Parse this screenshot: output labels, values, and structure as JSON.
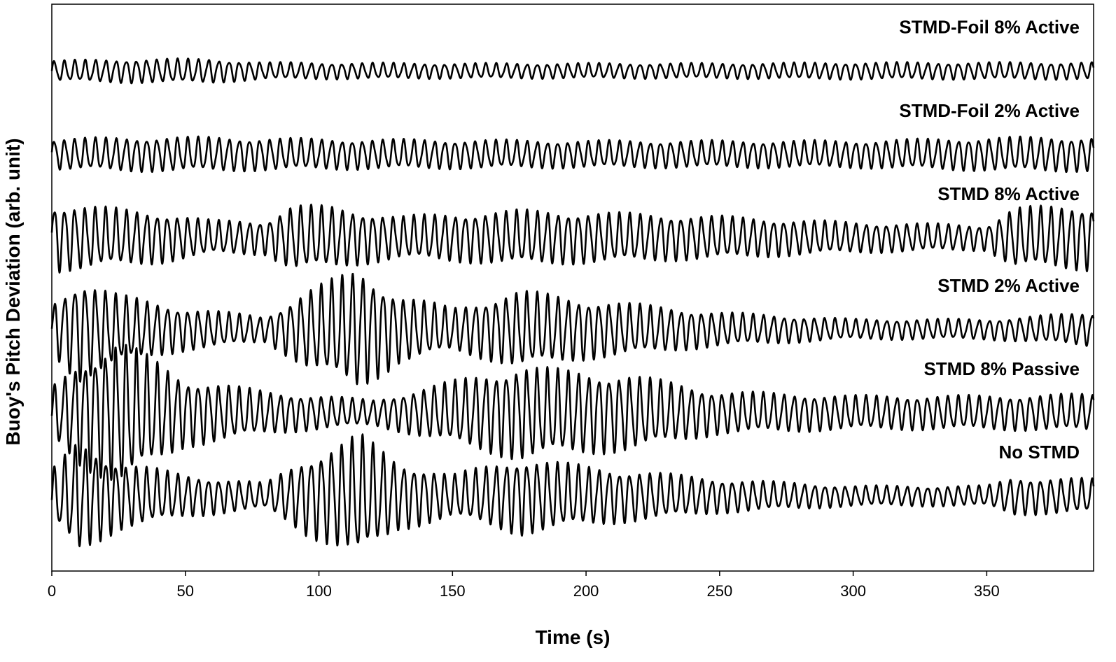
{
  "chart_data": {
    "type": "line",
    "xlabel": "Time (s)",
    "ylabel": "Buoy's Pitch Deviation (arb. unit)",
    "xlim": [
      0,
      390
    ],
    "x_ticks": [
      "0",
      "50",
      "100",
      "150",
      "200",
      "250",
      "300",
      "350"
    ],
    "y_ticks": "none",
    "grid": false,
    "legend": "labels above each trace (right-aligned)",
    "series": [
      {
        "name": "STMD-Foil 8% Active",
        "offset": 6.0,
        "freq": 0.26,
        "envelope": [
          [
            0,
            0.12
          ],
          [
            30,
            0.14
          ],
          [
            60,
            0.14
          ],
          [
            80,
            0.1
          ],
          [
            150,
            0.09
          ],
          [
            250,
            0.09
          ],
          [
            300,
            0.1
          ],
          [
            350,
            0.1
          ],
          [
            390,
            0.1
          ]
        ]
      },
      {
        "name": "STMD-Foil 2% Active",
        "offset": 5.0,
        "freq": 0.26,
        "envelope": [
          [
            0,
            0.18
          ],
          [
            30,
            0.2
          ],
          [
            60,
            0.2
          ],
          [
            100,
            0.18
          ],
          [
            200,
            0.16
          ],
          [
            300,
            0.16
          ],
          [
            360,
            0.2
          ],
          [
            390,
            0.2
          ]
        ]
      },
      {
        "name": "STMD 8% Active",
        "offset": 4.0,
        "freq": 0.26,
        "envelope": [
          [
            0,
            0.4
          ],
          [
            40,
            0.3
          ],
          [
            60,
            0.2
          ],
          [
            80,
            0.2
          ],
          [
            90,
            0.38
          ],
          [
            105,
            0.36
          ],
          [
            130,
            0.25
          ],
          [
            175,
            0.32
          ],
          [
            200,
            0.3
          ],
          [
            250,
            0.25
          ],
          [
            300,
            0.18
          ],
          [
            350,
            0.15
          ],
          [
            360,
            0.35
          ],
          [
            390,
            0.38
          ]
        ]
      },
      {
        "name": "STMD 2% Active",
        "offset": 2.9,
        "freq": 0.26,
        "envelope": [
          [
            0,
            0.3
          ],
          [
            10,
            0.6
          ],
          [
            25,
            0.4
          ],
          [
            50,
            0.25
          ],
          [
            80,
            0.15
          ],
          [
            95,
            0.45
          ],
          [
            115,
            0.7
          ],
          [
            130,
            0.4
          ],
          [
            150,
            0.25
          ],
          [
            175,
            0.45
          ],
          [
            200,
            0.35
          ],
          [
            250,
            0.2
          ],
          [
            300,
            0.12
          ],
          [
            350,
            0.12
          ],
          [
            390,
            0.2
          ]
        ]
      },
      {
        "name": "STMD 8% Passive",
        "offset": 1.9,
        "freq": 0.26,
        "envelope": [
          [
            0,
            0.3
          ],
          [
            10,
            0.6
          ],
          [
            25,
            0.85
          ],
          [
            50,
            0.4
          ],
          [
            80,
            0.25
          ],
          [
            120,
            0.15
          ],
          [
            175,
            0.55
          ],
          [
            190,
            0.5
          ],
          [
            215,
            0.45
          ],
          [
            250,
            0.25
          ],
          [
            300,
            0.2
          ],
          [
            350,
            0.2
          ],
          [
            390,
            0.22
          ]
        ]
      },
      {
        "name": "No STMD",
        "offset": 0.9,
        "freq": 0.26,
        "envelope": [
          [
            0,
            0.3
          ],
          [
            10,
            0.65
          ],
          [
            25,
            0.4
          ],
          [
            50,
            0.25
          ],
          [
            80,
            0.15
          ],
          [
            95,
            0.45
          ],
          [
            115,
            0.72
          ],
          [
            130,
            0.4
          ],
          [
            150,
            0.25
          ],
          [
            175,
            0.45
          ],
          [
            200,
            0.35
          ],
          [
            250,
            0.2
          ],
          [
            300,
            0.12
          ],
          [
            350,
            0.12
          ],
          [
            360,
            0.22
          ],
          [
            390,
            0.2
          ]
        ]
      }
    ],
    "ylim": [
      0,
      6.8
    ]
  }
}
